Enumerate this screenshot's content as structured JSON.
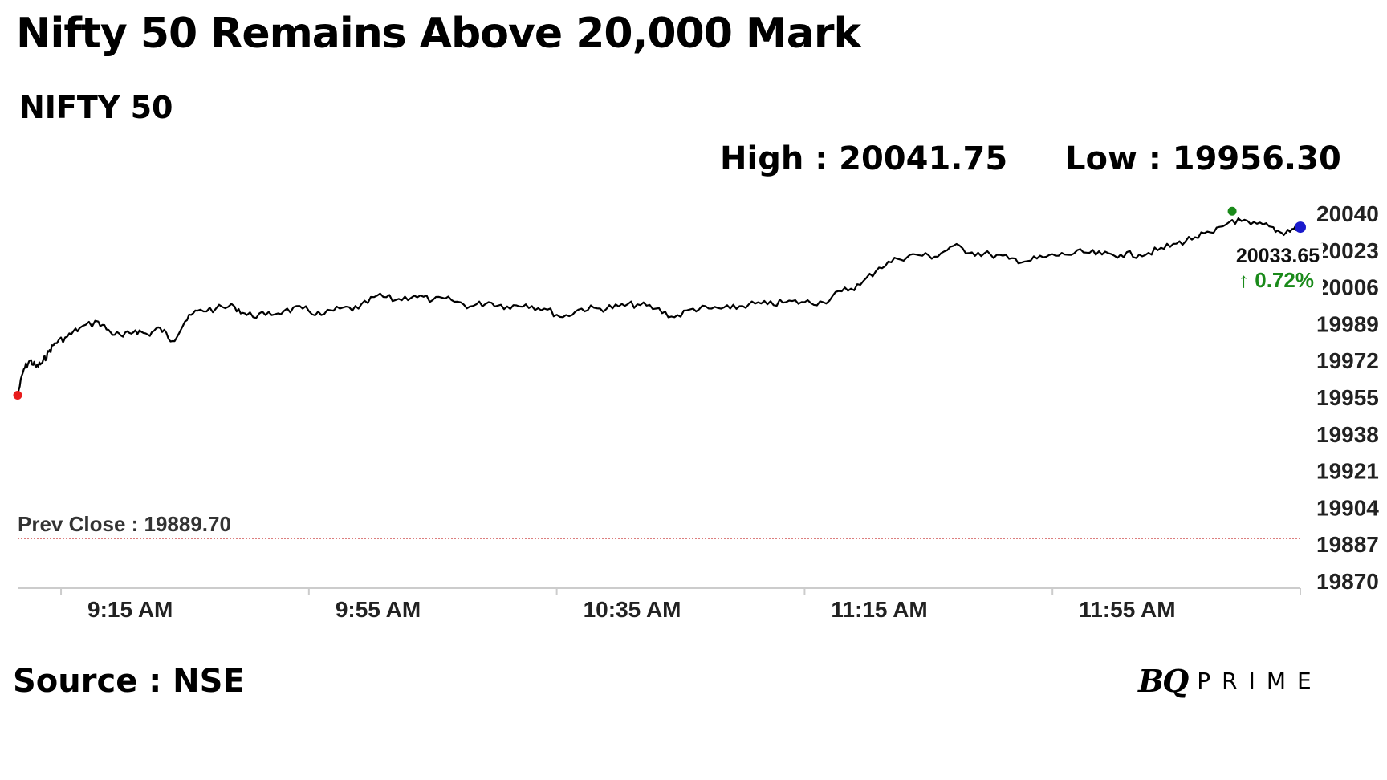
{
  "title": "Nifty 50 Remains Above 20,000 Mark",
  "subtitle": "NIFTY 50",
  "stats": {
    "high_text": "High : 20041.75",
    "low_text": "Low : 19956.30"
  },
  "source": "Source : NSE",
  "brand": {
    "mark": "BQ",
    "word": "PRIME"
  },
  "colors": {
    "line": "#000000",
    "low_marker": "#e81c1c",
    "high_marker": "#1a8a1a",
    "last_marker": "#1a1acc",
    "positive": "#1a8a1a",
    "prev_close_line": "#c83232",
    "axis": "#cccccc"
  },
  "chart_data": {
    "type": "line",
    "title": "NIFTY 50",
    "x_unit": "time of day",
    "x_range": [
      "09:08",
      "12:35"
    ],
    "x_ticks": [
      "9:15 AM",
      "9:55 AM",
      "10:35 AM",
      "11:15 AM",
      "11:55 AM"
    ],
    "y_ticks": [
      20040,
      20023,
      20006,
      19989,
      19972,
      19955,
      19938,
      19921,
      19904,
      19887,
      19870
    ],
    "ylim": [
      19870,
      20040
    ],
    "high": 20041.75,
    "low": 19956.3,
    "prev_close": 19889.7,
    "prev_close_label": "Prev Close : 19889.70",
    "last": 20033.65,
    "last_label": "20033.65",
    "change_label": "0.72%",
    "change_arrow": "↑",
    "grid": false,
    "series": [
      {
        "points": [
          [
            "09:08",
            19956.3
          ],
          [
            "09:09",
            19968
          ],
          [
            "09:10",
            19972
          ],
          [
            "09:11",
            19969
          ],
          [
            "09:12",
            19971
          ],
          [
            "09:13",
            19976
          ],
          [
            "09:14",
            19980
          ],
          [
            "09:16",
            19983
          ],
          [
            "09:18",
            19987
          ],
          [
            "09:21",
            19990
          ],
          [
            "09:23",
            19985
          ],
          [
            "09:25",
            19983
          ],
          [
            "09:27",
            19986
          ],
          [
            "09:29",
            19984
          ],
          [
            "09:31",
            19987
          ],
          [
            "09:33",
            19981
          ],
          [
            "09:35",
            19990
          ],
          [
            "09:37",
            19995
          ],
          [
            "09:40",
            19996
          ],
          [
            "09:43",
            19997
          ],
          [
            "09:45",
            19993
          ],
          [
            "09:48",
            19993
          ],
          [
            "09:51",
            19995
          ],
          [
            "09:54",
            19996
          ],
          [
            "09:57",
            19993
          ],
          [
            "10:00",
            19996
          ],
          [
            "10:03",
            19996
          ],
          [
            "10:06",
            20002
          ],
          [
            "10:09",
            20000
          ],
          [
            "10:12",
            20002
          ],
          [
            "10:15",
            20000
          ],
          [
            "10:18",
            20000
          ],
          [
            "10:21",
            19997
          ],
          [
            "10:24",
            19999
          ],
          [
            "10:27",
            19997
          ],
          [
            "10:30",
            19998
          ],
          [
            "10:33",
            19996
          ],
          [
            "10:36",
            19992
          ],
          [
            "10:39",
            19996
          ],
          [
            "10:42",
            19996
          ],
          [
            "10:45",
            19997
          ],
          [
            "10:48",
            19998
          ],
          [
            "10:51",
            19996
          ],
          [
            "10:54",
            19992
          ],
          [
            "10:57",
            19996
          ],
          [
            "11:00",
            19996
          ],
          [
            "11:03",
            19996
          ],
          [
            "11:06",
            19998
          ],
          [
            "11:09",
            19998
          ],
          [
            "11:12",
            19999
          ],
          [
            "11:15",
            19999
          ],
          [
            "11:18",
            19999
          ],
          [
            "11:21",
            20004
          ],
          [
            "11:24",
            20007
          ],
          [
            "11:27",
            20015
          ],
          [
            "11:30",
            20019
          ],
          [
            "11:33",
            20021
          ],
          [
            "11:36",
            20020
          ],
          [
            "11:39",
            20025
          ],
          [
            "11:42",
            20022
          ],
          [
            "11:45",
            20021
          ],
          [
            "11:48",
            20019
          ],
          [
            "11:51",
            20018
          ],
          [
            "11:54",
            20020
          ],
          [
            "11:57",
            20021
          ],
          [
            "12:00",
            20022
          ],
          [
            "12:03",
            20021
          ],
          [
            "12:06",
            20021
          ],
          [
            "12:09",
            20021
          ],
          [
            "12:12",
            20023
          ],
          [
            "12:15",
            20026
          ],
          [
            "12:18",
            20029
          ],
          [
            "12:21",
            20031
          ],
          [
            "12:24",
            20037
          ],
          [
            "12:27",
            20035
          ],
          [
            "12:30",
            20034
          ],
          [
            "12:32",
            20031
          ],
          [
            "12:34",
            20033
          ],
          [
            "12:35",
            20033.65
          ]
        ]
      }
    ]
  }
}
